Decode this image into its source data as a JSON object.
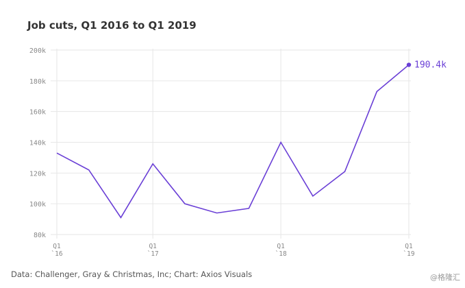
{
  "chart_data": {
    "type": "line",
    "title": "Job cuts, Q1 2016 to Q1 2019",
    "categories": [
      "Q1\n`16",
      null,
      null,
      "Q1\n`17",
      null,
      null,
      null,
      "Q1\n`18",
      null,
      null,
      null,
      "Q1\n`19"
    ],
    "series": [
      {
        "name": "Job cuts",
        "color": "#6a3fd6",
        "values": [
          133,
          122,
          91,
          126,
          100,
          94,
          97,
          140,
          105,
          121,
          173,
          190.4
        ],
        "value_labels": [
          null,
          null,
          null,
          null,
          null,
          null,
          null,
          null,
          null,
          null,
          null,
          "190.4k"
        ]
      }
    ],
    "ylim": [
      80,
      200
    ],
    "yticks": [
      {
        "value": 80,
        "label": "80k"
      },
      {
        "value": 100,
        "label": "100k"
      },
      {
        "value": 120,
        "label": "120k"
      },
      {
        "value": 140,
        "label": "140k"
      },
      {
        "value": 160,
        "label": "160k"
      },
      {
        "value": 180,
        "label": "180k"
      },
      {
        "value": 200,
        "label": "200k"
      }
    ],
    "grid": true,
    "source": "Data: Challenger, Gray & Christmas, Inc; Chart: Axios Visuals",
    "watermark": "@格隆汇"
  }
}
